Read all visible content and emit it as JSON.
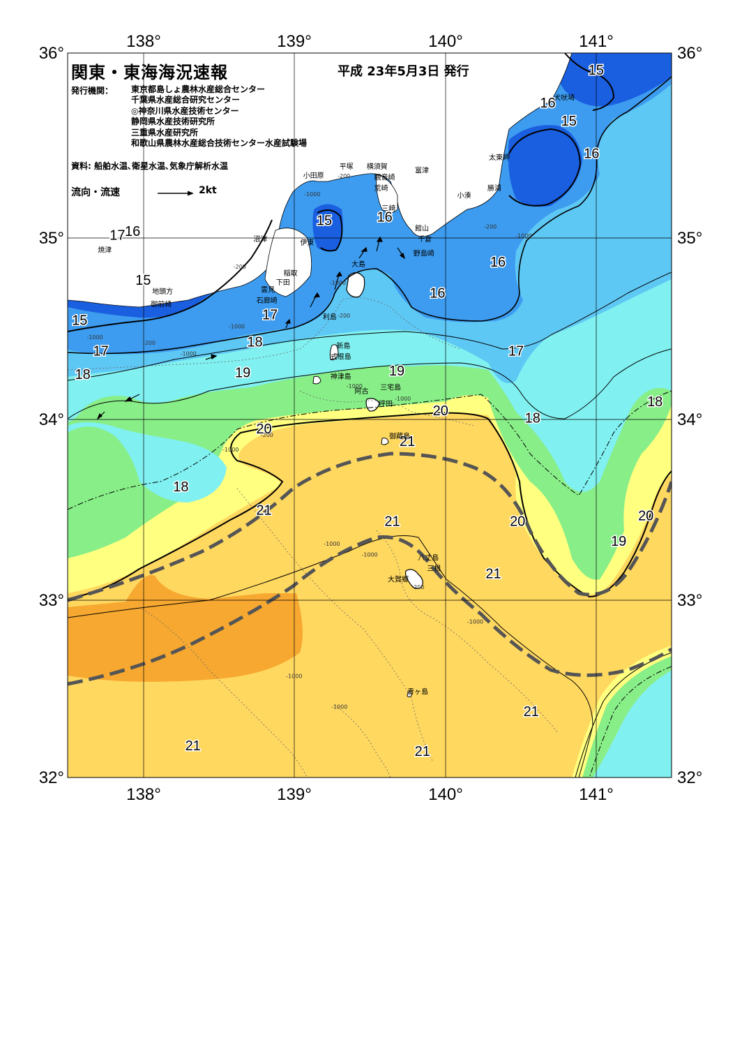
{
  "header": {
    "title": "関東・東海海況速報",
    "date": "平成 23年5月3日 発行",
    "org_label": "発行機関：",
    "organizations": [
      "東京都島しょ農林水産総合センター",
      "千葉県水産総合研究センター",
      "◎神奈川県水産技術センター",
      "静岡県水産技術研究所",
      "三重県水産研究所",
      "和歌山県農林水産総合技術センター水産試験場"
    ],
    "source": "資料: 船舶水温､衛星水温､気象庁解析水温",
    "flow_label": "流向・流速",
    "flow_unit": "2kt"
  },
  "axes": {
    "lon_labels": [
      "138°",
      "139°",
      "140°",
      "141°"
    ],
    "lat_labels": [
      "36°",
      "35°",
      "34°",
      "33°",
      "32°"
    ],
    "lon_range": [
      137.5,
      141.5
    ],
    "lat_range": [
      32,
      36
    ],
    "grid": true
  },
  "colors": {
    "t15": "#1a5fe0",
    "t16": "#3d9cf0",
    "t17": "#5ec8f5",
    "t18": "#80f0f0",
    "t19": "#88ee88",
    "t20": "#ffff80",
    "t21": "#ffd860",
    "t22": "#f7a830",
    "land": "#ffffff",
    "kuroshio_axis": "#555555"
  },
  "isotherm_labels": [
    {
      "text": "15",
      "lon": 141.0,
      "lat": 35.88
    },
    {
      "text": "16",
      "lon": 140.68,
      "lat": 35.7
    },
    {
      "text": "15",
      "lon": 140.82,
      "lat": 35.6
    },
    {
      "text": "16",
      "lon": 140.97,
      "lat": 35.42
    },
    {
      "text": "15",
      "lon": 139.2,
      "lat": 35.05
    },
    {
      "text": "16",
      "lon": 139.6,
      "lat": 35.07
    },
    {
      "text": "17",
      "lon": 137.83,
      "lat": 34.97
    },
    {
      "text": "16",
      "lon": 137.93,
      "lat": 34.99
    },
    {
      "text": "16",
      "lon": 140.35,
      "lat": 34.82
    },
    {
      "text": "15",
      "lon": 138.0,
      "lat": 34.72
    },
    {
      "text": "16",
      "lon": 139.95,
      "lat": 34.65
    },
    {
      "text": "15",
      "lon": 137.58,
      "lat": 34.5
    },
    {
      "text": "17",
      "lon": 138.84,
      "lat": 34.53
    },
    {
      "text": "17",
      "lon": 137.72,
      "lat": 34.33
    },
    {
      "text": "18",
      "lon": 138.74,
      "lat": 34.38
    },
    {
      "text": "17",
      "lon": 140.47,
      "lat": 34.33
    },
    {
      "text": "18",
      "lon": 137.6,
      "lat": 34.2
    },
    {
      "text": "19",
      "lon": 138.66,
      "lat": 34.21
    },
    {
      "text": "19",
      "lon": 139.68,
      "lat": 34.22
    },
    {
      "text": "18",
      "lon": 141.39,
      "lat": 34.05
    },
    {
      "text": "20",
      "lon": 139.97,
      "lat": 34.0
    },
    {
      "text": "18",
      "lon": 140.58,
      "lat": 33.96
    },
    {
      "text": "20",
      "lon": 138.8,
      "lat": 33.9
    },
    {
      "text": "21",
      "lon": 139.75,
      "lat": 33.83
    },
    {
      "text": "18",
      "lon": 138.25,
      "lat": 33.58
    },
    {
      "text": "21",
      "lon": 138.8,
      "lat": 33.45
    },
    {
      "text": "20",
      "lon": 141.33,
      "lat": 33.42
    },
    {
      "text": "21",
      "lon": 139.65,
      "lat": 33.39
    },
    {
      "text": "20",
      "lon": 140.48,
      "lat": 33.39
    },
    {
      "text": "19",
      "lon": 141.15,
      "lat": 33.28
    },
    {
      "text": "21",
      "lon": 140.32,
      "lat": 33.1
    },
    {
      "text": "21",
      "lon": 140.57,
      "lat": 32.34
    },
    {
      "text": "21",
      "lon": 138.33,
      "lat": 32.15
    },
    {
      "text": "21",
      "lon": 139.85,
      "lat": 32.12
    }
  ],
  "place_labels": [
    {
      "text": "犬吠埼",
      "lon": 140.72,
      "lat": 35.74
    },
    {
      "text": "太東岬",
      "lon": 140.29,
      "lat": 35.41
    },
    {
      "text": "勝浦",
      "lon": 140.28,
      "lat": 35.24
    },
    {
      "text": "小湊",
      "lon": 140.08,
      "lat": 35.2
    },
    {
      "text": "富津",
      "lon": 139.8,
      "lat": 35.34
    },
    {
      "text": "平塚",
      "lon": 139.3,
      "lat": 35.36
    },
    {
      "text": "横須賀",
      "lon": 139.48,
      "lat": 35.36
    },
    {
      "text": "観音崎",
      "lon": 139.53,
      "lat": 35.3
    },
    {
      "text": "荒崎",
      "lon": 139.53,
      "lat": 35.24
    },
    {
      "text": "小田原",
      "lon": 139.06,
      "lat": 35.31
    },
    {
      "text": "三崎",
      "lon": 139.58,
      "lat": 35.13
    },
    {
      "text": "館山",
      "lon": 139.8,
      "lat": 35.02
    },
    {
      "text": "千倉",
      "lon": 139.82,
      "lat": 34.96
    },
    {
      "text": "野島崎",
      "lon": 139.79,
      "lat": 34.88
    },
    {
      "text": "沼津",
      "lon": 138.73,
      "lat": 34.96
    },
    {
      "text": "伊東",
      "lon": 139.04,
      "lat": 34.94
    },
    {
      "text": "焼津",
      "lon": 137.7,
      "lat": 34.9
    },
    {
      "text": "大島",
      "lon": 139.38,
      "lat": 34.82
    },
    {
      "text": "稲取",
      "lon": 138.93,
      "lat": 34.77
    },
    {
      "text": "下田",
      "lon": 138.88,
      "lat": 34.72
    },
    {
      "text": "雲見",
      "lon": 138.78,
      "lat": 34.68
    },
    {
      "text": "石廊崎",
      "lon": 138.75,
      "lat": 34.62
    },
    {
      "text": "地頭方",
      "lon": 138.06,
      "lat": 34.67
    },
    {
      "text": "御前崎",
      "lon": 138.05,
      "lat": 34.6
    },
    {
      "text": "利島",
      "lon": 139.19,
      "lat": 34.53
    },
    {
      "text": "新島",
      "lon": 139.28,
      "lat": 34.37
    },
    {
      "text": "式根島",
      "lon": 139.24,
      "lat": 34.31
    },
    {
      "text": "神津島",
      "lon": 139.24,
      "lat": 34.2
    },
    {
      "text": "阿古",
      "lon": 139.4,
      "lat": 34.12
    },
    {
      "text": "三宅島",
      "lon": 139.57,
      "lat": 34.14
    },
    {
      "text": "坪田",
      "lon": 139.56,
      "lat": 34.05
    },
    {
      "text": "御蔵島",
      "lon": 139.63,
      "lat": 33.87
    },
    {
      "text": "八丈島",
      "lon": 139.82,
      "lat": 33.2
    },
    {
      "text": "三根",
      "lon": 139.88,
      "lat": 33.14
    },
    {
      "text": "大賀郷",
      "lon": 139.62,
      "lat": 33.08
    },
    {
      "text": "青ヶ島",
      "lon": 139.75,
      "lat": 32.46
    }
  ],
  "depth_labels": [
    {
      "text": "-200",
      "lon": 139.33,
      "lat": 35.31
    },
    {
      "text": "-1000",
      "lon": 139.12,
      "lat": 35.21
    },
    {
      "text": "-200",
      "lon": 140.3,
      "lat": 35.03
    },
    {
      "text": "-1000",
      "lon": 140.52,
      "lat": 34.98
    },
    {
      "text": "-200",
      "lon": 138.64,
      "lat": 34.81
    },
    {
      "text": "-1000",
      "lon": 139.29,
      "lat": 34.72
    },
    {
      "text": "-200",
      "lon": 139.33,
      "lat": 34.54
    },
    {
      "text": "-1000",
      "lon": 138.62,
      "lat": 34.48
    },
    {
      "text": "-1000",
      "lon": 137.68,
      "lat": 34.42
    },
    {
      "text": "-200",
      "lon": 138.04,
      "lat": 34.39
    },
    {
      "text": "-1000",
      "lon": 138.3,
      "lat": 34.33
    },
    {
      "text": "-1000",
      "lon": 139.4,
      "lat": 34.15
    },
    {
      "text": "-1000",
      "lon": 139.72,
      "lat": 34.08
    },
    {
      "text": "-200",
      "lon": 138.82,
      "lat": 33.88
    },
    {
      "text": "-1000",
      "lon": 138.58,
      "lat": 33.8
    },
    {
      "text": "-1000",
      "lon": 139.25,
      "lat": 33.28
    },
    {
      "text": "-1000",
      "lon": 139.5,
      "lat": 33.22
    },
    {
      "text": "-200",
      "lon": 139.82,
      "lat": 33.04
    },
    {
      "text": "-1000",
      "lon": 140.2,
      "lat": 32.85
    },
    {
      "text": "-1000",
      "lon": 139.0,
      "lat": 32.55
    },
    {
      "text": "-1000",
      "lon": 139.3,
      "lat": 32.38
    }
  ]
}
